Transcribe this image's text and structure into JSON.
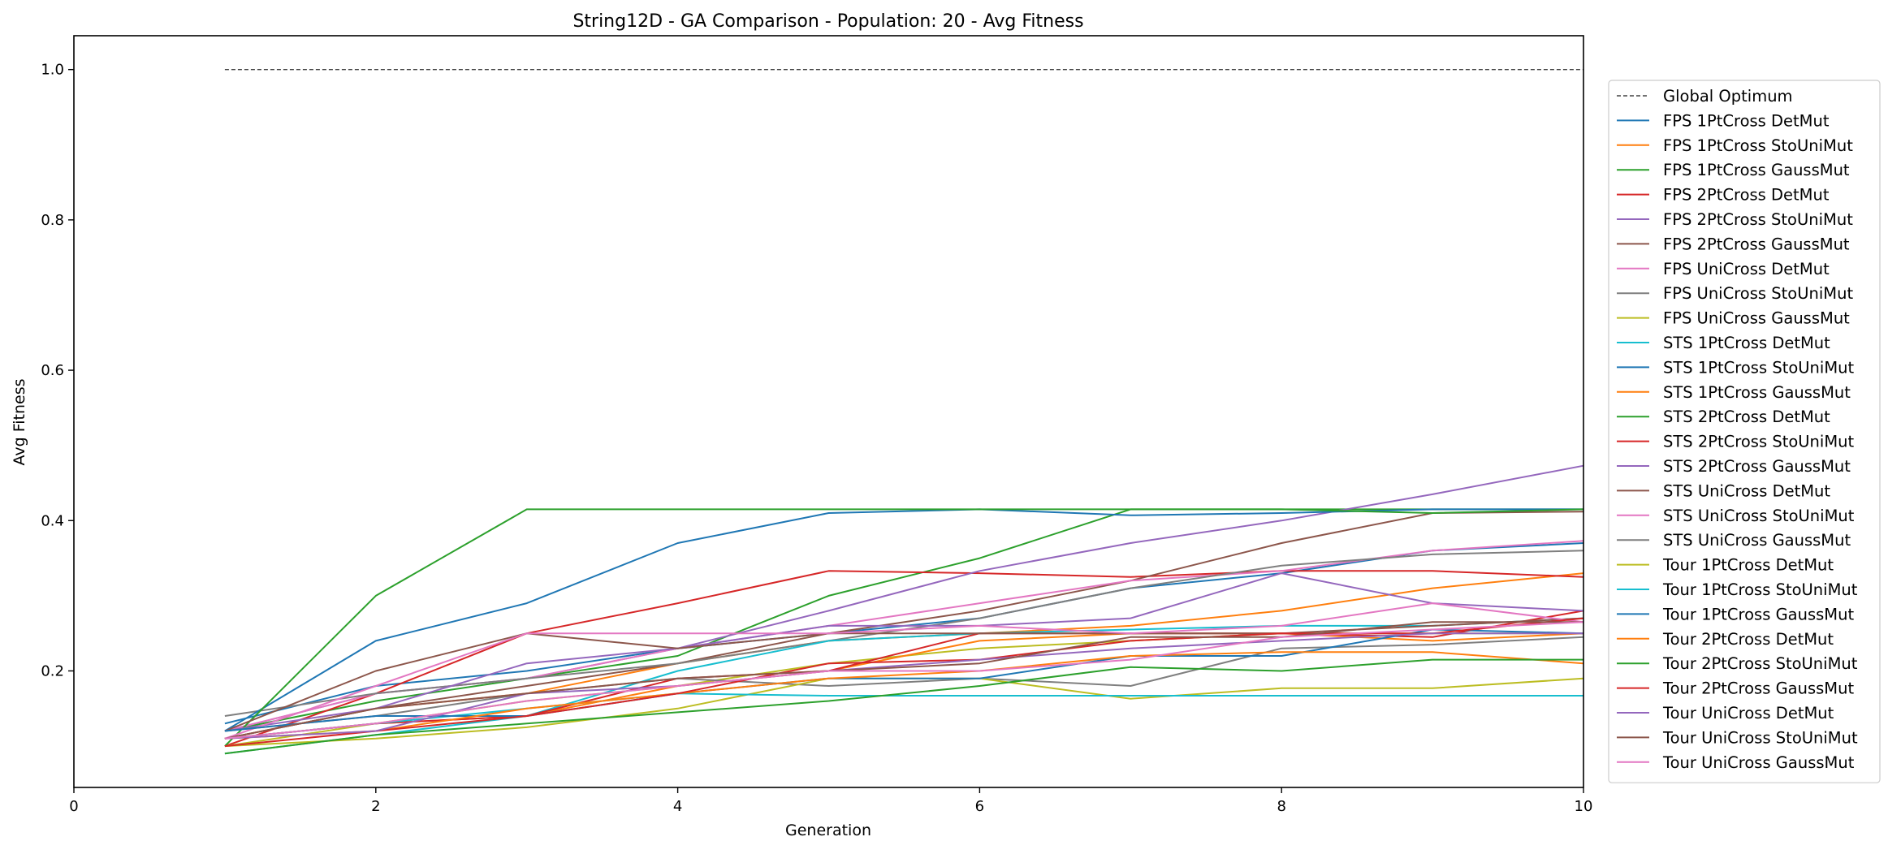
{
  "chart_data": {
    "type": "line",
    "title": "String12D - GA Comparison - Population: 20 - Avg Fitness",
    "xlabel": "Generation",
    "ylabel": "Avg Fitness",
    "xlim": [
      0,
      10
    ],
    "ylim": [
      0.045,
      1.045
    ],
    "xticks": [
      0,
      2,
      4,
      6,
      8,
      10
    ],
    "yticks": [
      0.2,
      0.4,
      0.6,
      0.8,
      1.0
    ],
    "grid": false,
    "legend_position": "right, outside plot",
    "x": [
      1,
      2,
      3,
      4,
      5,
      6,
      7,
      8,
      9,
      10
    ],
    "global_optimum": {
      "name": "Global Optimum",
      "value": 1.0,
      "x_range": [
        1,
        10
      ],
      "color": "#444444",
      "style": "dashed"
    },
    "series": [
      {
        "name": "FPS 1PtCross DetMut",
        "color": "#1f77b4",
        "values": [
          0.13,
          0.18,
          0.2,
          0.23,
          0.25,
          0.27,
          0.31,
          0.33,
          0.36,
          0.37
        ]
      },
      {
        "name": "FPS 1PtCross StoUniMut",
        "color": "#ff7f0e",
        "values": [
          0.11,
          0.15,
          0.17,
          0.21,
          0.24,
          0.25,
          0.26,
          0.28,
          0.31,
          0.33
        ]
      },
      {
        "name": "FPS 1PtCross GaussMut",
        "color": "#2ca02c",
        "values": [
          0.12,
          0.16,
          0.19,
          0.22,
          0.3,
          0.35,
          0.415,
          0.415,
          0.415,
          0.415
        ]
      },
      {
        "name": "FPS 2PtCross DetMut",
        "color": "#d62728",
        "values": [
          0.1,
          0.17,
          0.25,
          0.29,
          0.333,
          0.33,
          0.325,
          0.333,
          0.333,
          0.325
        ]
      },
      {
        "name": "FPS 2PtCross StoUniMut",
        "color": "#9467bd",
        "values": [
          0.12,
          0.17,
          0.19,
          0.23,
          0.28,
          0.333,
          0.37,
          0.4,
          0.435,
          0.473
        ]
      },
      {
        "name": "FPS 2PtCross GaussMut",
        "color": "#8c564b",
        "values": [
          0.11,
          0.15,
          0.18,
          0.21,
          0.25,
          0.28,
          0.32,
          0.37,
          0.41,
          0.412
        ]
      },
      {
        "name": "FPS UniCross DetMut",
        "color": "#e377c2",
        "values": [
          0.12,
          0.17,
          0.19,
          0.23,
          0.26,
          0.29,
          0.32,
          0.333,
          0.36,
          0.373
        ]
      },
      {
        "name": "FPS UniCross StoUniMut",
        "color": "#7f7f7f",
        "values": [
          0.14,
          0.17,
          0.19,
          0.21,
          0.24,
          0.27,
          0.31,
          0.34,
          0.355,
          0.36
        ]
      },
      {
        "name": "FPS UniCross GaussMut",
        "color": "#bcbd22",
        "values": [
          0.1,
          0.13,
          0.16,
          0.18,
          0.21,
          0.23,
          0.24,
          0.25,
          0.25,
          0.25
        ]
      },
      {
        "name": "STS 1PtCross DetMut",
        "color": "#17becf",
        "values": [
          0.09,
          0.115,
          0.14,
          0.2,
          0.24,
          0.25,
          0.255,
          0.26,
          0.26,
          0.27
        ]
      },
      {
        "name": "STS 1PtCross StoUniMut",
        "color": "#1f77b4",
        "values": [
          0.12,
          0.24,
          0.29,
          0.37,
          0.41,
          0.415,
          0.407,
          0.41,
          0.415,
          0.415
        ]
      },
      {
        "name": "STS 1PtCross GaussMut",
        "color": "#ff7f0e",
        "values": [
          0.11,
          0.13,
          0.14,
          0.18,
          0.2,
          0.24,
          0.25,
          0.25,
          0.24,
          0.25
        ]
      },
      {
        "name": "STS 2PtCross DetMut",
        "color": "#2ca02c",
        "values": [
          0.1,
          0.3,
          0.415,
          0.415,
          0.415,
          0.415,
          0.415,
          0.415,
          0.41,
          0.415
        ]
      },
      {
        "name": "STS 2PtCross StoUniMut",
        "color": "#d62728",
        "values": [
          0.11,
          0.13,
          0.14,
          0.19,
          0.2,
          0.25,
          0.25,
          0.25,
          0.245,
          0.28
        ]
      },
      {
        "name": "STS 2PtCross GaussMut",
        "color": "#9467bd",
        "values": [
          0.12,
          0.15,
          0.21,
          0.23,
          0.26,
          0.26,
          0.27,
          0.33,
          0.29,
          0.28
        ]
      },
      {
        "name": "STS UniCross DetMut",
        "color": "#8c564b",
        "values": [
          0.12,
          0.2,
          0.25,
          0.23,
          0.25,
          0.25,
          0.25,
          0.25,
          0.26,
          0.27
        ]
      },
      {
        "name": "STS UniCross StoUniMut",
        "color": "#e377c2",
        "values": [
          0.11,
          0.18,
          0.25,
          0.25,
          0.25,
          0.26,
          0.25,
          0.26,
          0.29,
          0.265
        ]
      },
      {
        "name": "STS UniCross GaussMut",
        "color": "#7f7f7f",
        "values": [
          0.12,
          0.14,
          0.17,
          0.19,
          0.18,
          0.19,
          0.18,
          0.23,
          0.235,
          0.245
        ]
      },
      {
        "name": "Tour 1PtCross DetMut",
        "color": "#bcbd22",
        "values": [
          0.1,
          0.11,
          0.125,
          0.15,
          0.19,
          0.19,
          0.163,
          0.177,
          0.177,
          0.19
        ]
      },
      {
        "name": "Tour 1PtCross StoUniMut",
        "color": "#17becf",
        "values": [
          0.11,
          0.13,
          0.15,
          0.17,
          0.167,
          0.167,
          0.167,
          0.167,
          0.167,
          0.167
        ]
      },
      {
        "name": "Tour 1PtCross GaussMut",
        "color": "#1f77b4",
        "values": [
          0.12,
          0.14,
          0.14,
          0.17,
          0.19,
          0.19,
          0.22,
          0.22,
          0.255,
          0.25
        ]
      },
      {
        "name": "Tour 2PtCross DetMut",
        "color": "#ff7f0e",
        "values": [
          0.11,
          0.12,
          0.15,
          0.17,
          0.19,
          0.2,
          0.22,
          0.225,
          0.225,
          0.21
        ]
      },
      {
        "name": "Tour 2PtCross StoUniMut",
        "color": "#2ca02c",
        "values": [
          0.09,
          0.115,
          0.13,
          0.145,
          0.16,
          0.18,
          0.205,
          0.2,
          0.215,
          0.215
        ]
      },
      {
        "name": "Tour 2PtCross GaussMut",
        "color": "#d62728",
        "values": [
          0.1,
          0.12,
          0.14,
          0.17,
          0.21,
          0.215,
          0.24,
          0.25,
          0.25,
          0.27
        ]
      },
      {
        "name": "Tour UniCross DetMut",
        "color": "#9467bd",
        "values": [
          0.11,
          0.12,
          0.17,
          0.18,
          0.2,
          0.215,
          0.23,
          0.24,
          0.25,
          0.25
        ]
      },
      {
        "name": "Tour UniCross StoUniMut",
        "color": "#8c564b",
        "values": [
          0.11,
          0.15,
          0.17,
          0.19,
          0.2,
          0.21,
          0.245,
          0.245,
          0.265,
          0.265
        ]
      },
      {
        "name": "Tour UniCross GaussMut",
        "color": "#e377c2",
        "values": [
          0.11,
          0.13,
          0.16,
          0.18,
          0.2,
          0.2,
          0.215,
          0.245,
          0.255,
          0.265
        ]
      }
    ]
  }
}
